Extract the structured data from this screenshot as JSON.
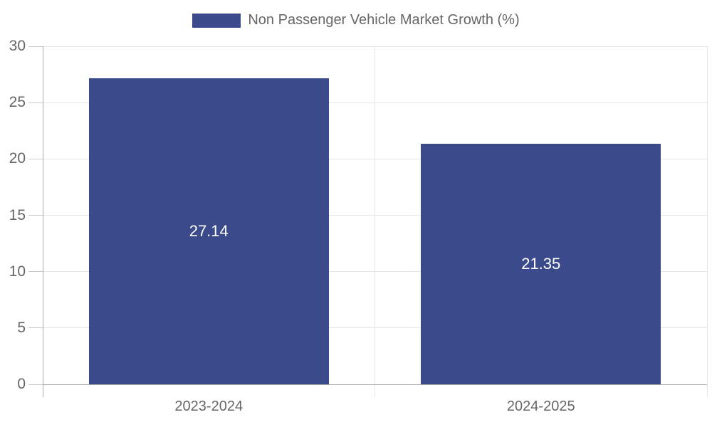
{
  "legend": {
    "label": "Non Passenger Vehicle Market Growth (%)"
  },
  "colors": {
    "bar": "#3a4a8a",
    "bar_label": "#ffffff",
    "text": "#666666",
    "gridline": "#e6e6e6",
    "tick": "#c9c9c9",
    "axis": "#ababab"
  },
  "chart_data": {
    "type": "bar",
    "title": "Non Passenger Vehicle Market Growth (%)",
    "categories": [
      "2023-2024",
      "2024-2025"
    ],
    "values": [
      27.14,
      21.35
    ],
    "value_labels": [
      "27.14",
      "21.35"
    ],
    "xlabel": "",
    "ylabel": "",
    "ylim": [
      0,
      30
    ],
    "yticks": [
      0,
      5,
      10,
      15,
      20,
      25,
      30
    ],
    "grid": true,
    "legend_position": "top-center",
    "bar_label_position": "inside-center"
  }
}
